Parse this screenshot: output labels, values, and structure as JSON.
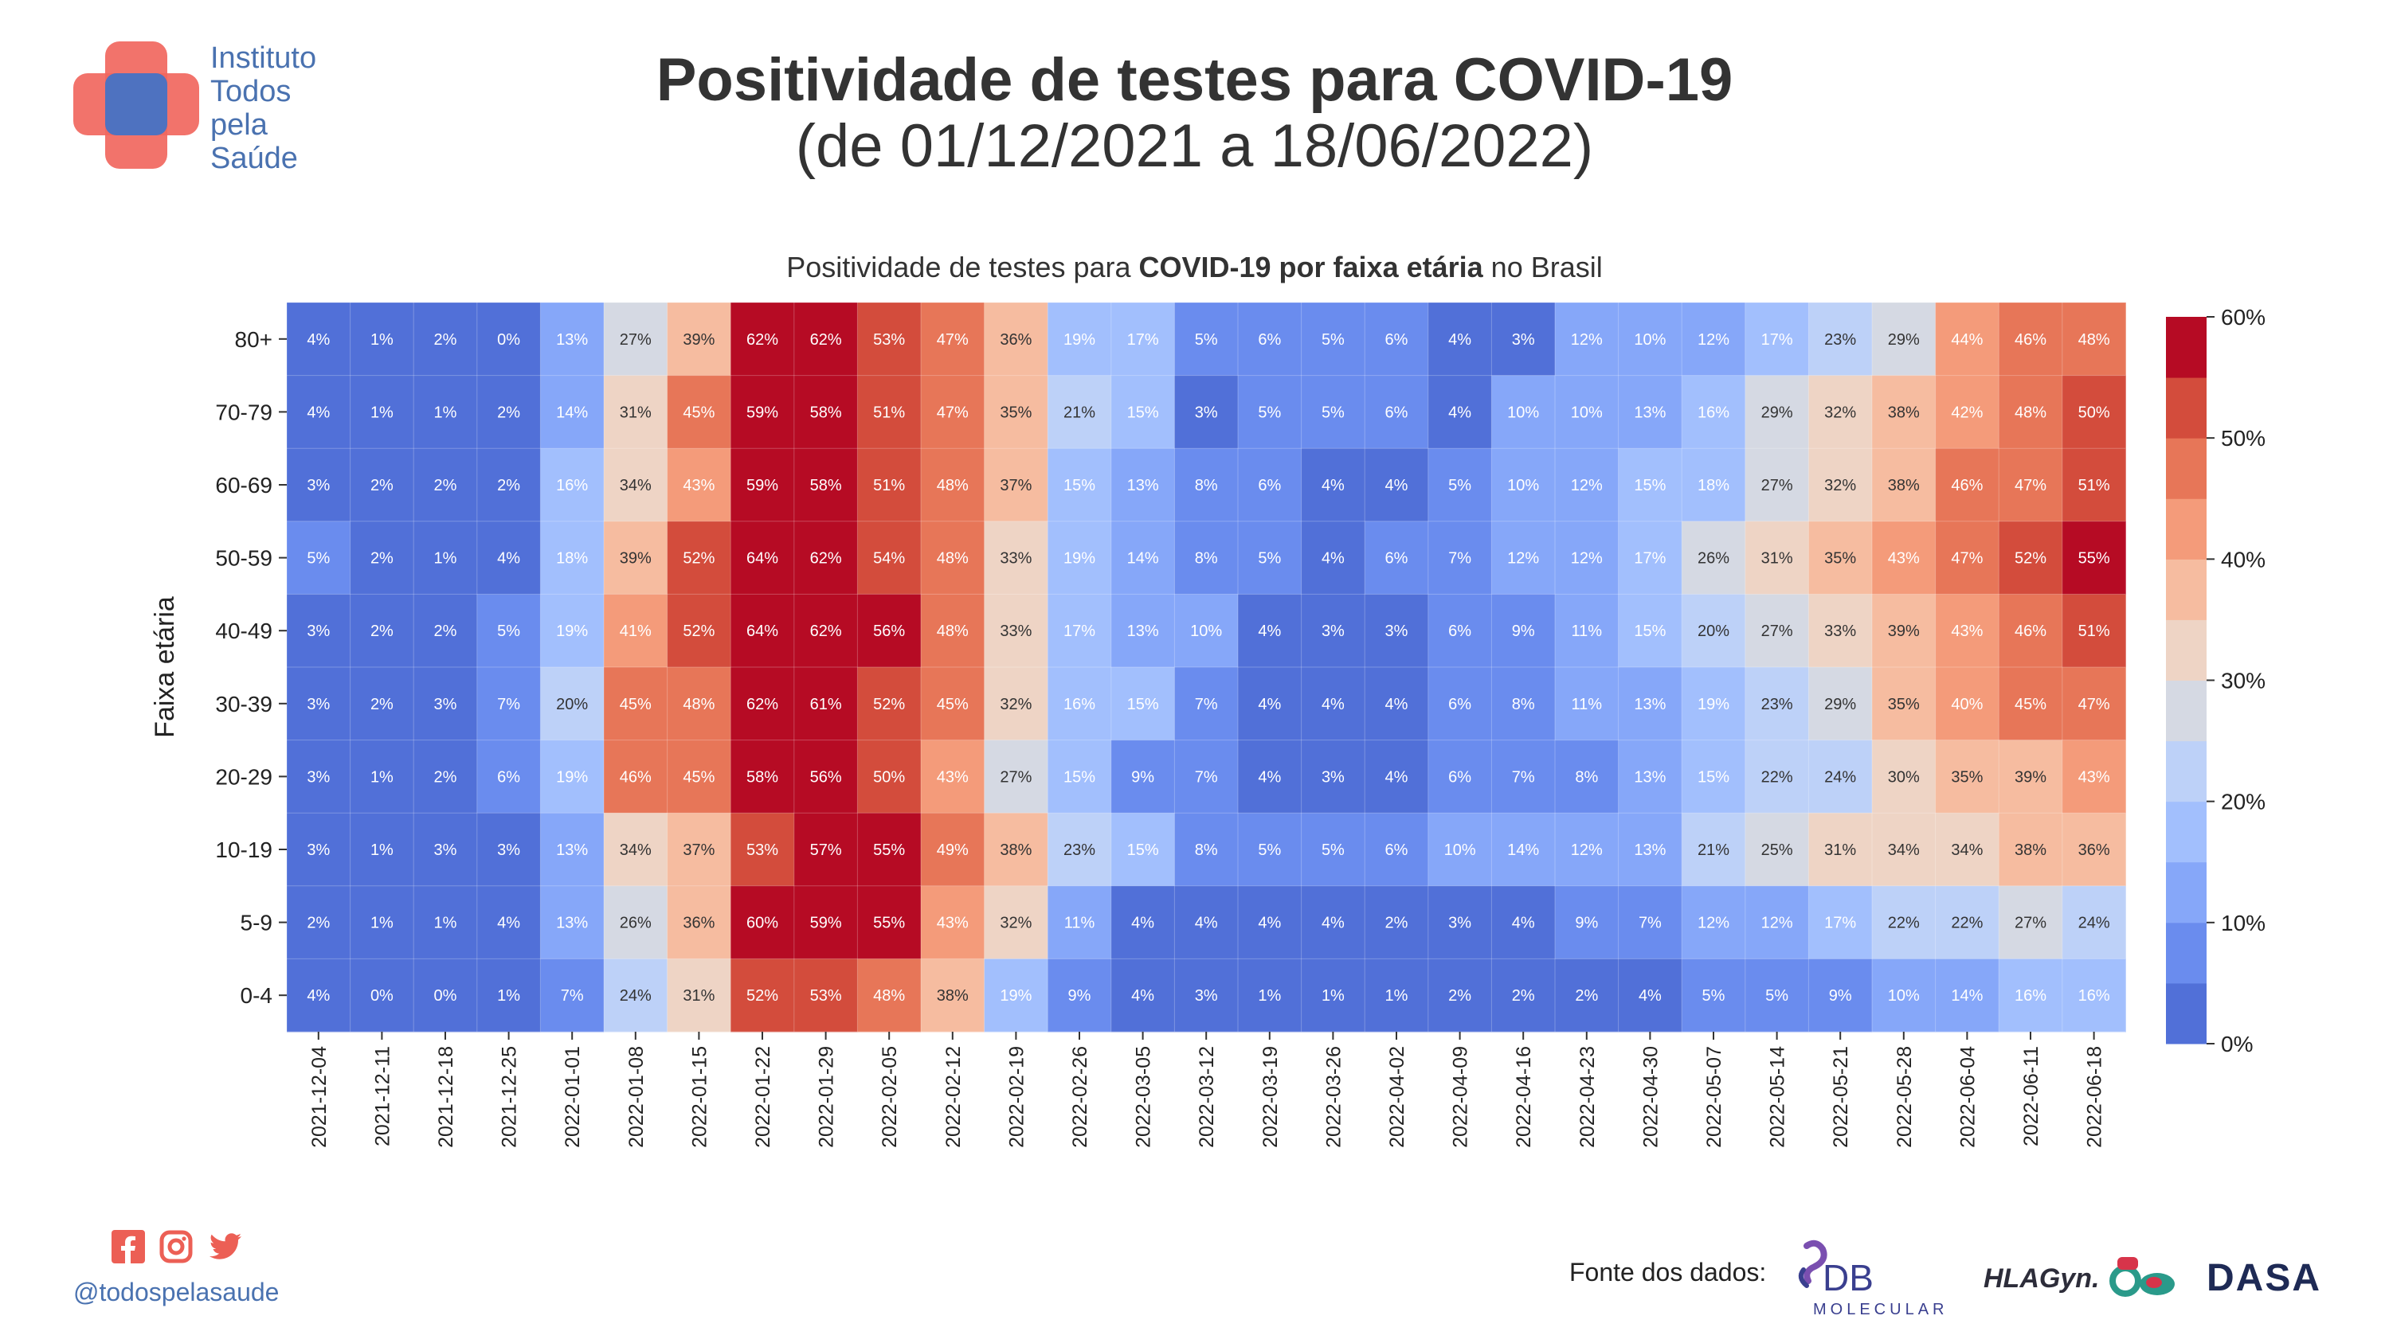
{
  "header": {
    "logo_lines": [
      "Instituto",
      "Todos",
      "pela",
      "Saúde"
    ],
    "title": "Positividade de testes para COVID-19",
    "subtitle": "(de 01/12/2021 a 18/06/2022)"
  },
  "chart_title": {
    "part1": "Positividade de testes para ",
    "bold": "COVID-19 por faixa etária",
    "part2": " no Brasil"
  },
  "footer": {
    "handle": "@todospelasaude",
    "source_label": "Fonte dos dados:",
    "partners": [
      "DB",
      "MOLECULAR",
      "HLAGyn.",
      "DASA"
    ]
  },
  "colors": {
    "scale": [
      "#5170d8",
      "#6a8cee",
      "#86a7f9",
      "#a2bffd",
      "#bdd1f8",
      "#d5d9e3",
      "#eed4c5",
      "#f6bca0",
      "#f49b7a",
      "#e77658",
      "#d34c3c",
      "#b60b24"
    ],
    "brand_blue": "#4a72b0",
    "brand_red": "#f1675e"
  },
  "chart_data": {
    "type": "heatmap",
    "ylabel": "Faixa etária",
    "xlabel": "",
    "x": [
      "2021-12-04",
      "2021-12-11",
      "2021-12-18",
      "2021-12-25",
      "2022-01-01",
      "2022-01-08",
      "2022-01-15",
      "2022-01-22",
      "2022-01-29",
      "2022-02-05",
      "2022-02-12",
      "2022-02-19",
      "2022-02-26",
      "2022-03-05",
      "2022-03-12",
      "2022-03-19",
      "2022-03-26",
      "2022-04-02",
      "2022-04-09",
      "2022-04-16",
      "2022-04-23",
      "2022-04-30",
      "2022-05-07",
      "2022-05-14",
      "2022-05-21",
      "2022-05-28",
      "2022-06-04",
      "2022-06-11",
      "2022-06-18"
    ],
    "y": [
      "80+",
      "70-79",
      "60-69",
      "50-59",
      "40-49",
      "30-39",
      "20-29",
      "10-19",
      "5-9",
      "0-4"
    ],
    "values": [
      [
        4,
        1,
        2,
        0,
        13,
        27,
        39,
        62,
        62,
        53,
        47,
        36,
        19,
        17,
        5,
        6,
        5,
        6,
        4,
        3,
        12,
        10,
        12,
        17,
        23,
        29,
        44,
        46,
        48
      ],
      [
        4,
        1,
        1,
        2,
        14,
        31,
        45,
        59,
        58,
        51,
        47,
        35,
        21,
        15,
        3,
        5,
        5,
        6,
        4,
        10,
        10,
        13,
        16,
        29,
        32,
        38,
        42,
        48,
        50
      ],
      [
        3,
        2,
        2,
        2,
        16,
        34,
        43,
        59,
        58,
        51,
        48,
        37,
        15,
        13,
        8,
        6,
        4,
        4,
        5,
        10,
        12,
        15,
        18,
        27,
        32,
        38,
        46,
        47,
        51
      ],
      [
        5,
        2,
        1,
        4,
        18,
        39,
        52,
        64,
        62,
        54,
        48,
        33,
        19,
        14,
        8,
        5,
        4,
        6,
        7,
        12,
        12,
        17,
        26,
        31,
        35,
        43,
        47,
        52,
        55
      ],
      [
        3,
        2,
        2,
        5,
        19,
        41,
        52,
        64,
        62,
        56,
        48,
        33,
        17,
        13,
        10,
        4,
        3,
        3,
        6,
        9,
        11,
        15,
        20,
        27,
        33,
        39,
        43,
        46,
        51
      ],
      [
        3,
        2,
        3,
        7,
        20,
        45,
        48,
        62,
        61,
        52,
        45,
        32,
        16,
        15,
        7,
        4,
        4,
        4,
        6,
        8,
        11,
        13,
        19,
        23,
        29,
        35,
        40,
        45,
        47
      ],
      [
        3,
        1,
        2,
        6,
        19,
        46,
        45,
        58,
        56,
        50,
        43,
        27,
        15,
        9,
        7,
        4,
        3,
        4,
        6,
        7,
        8,
        13,
        15,
        22,
        24,
        30,
        35,
        39,
        43
      ],
      [
        3,
        1,
        3,
        3,
        13,
        34,
        37,
        53,
        57,
        55,
        49,
        38,
        23,
        15,
        8,
        5,
        5,
        6,
        10,
        14,
        12,
        13,
        21,
        25,
        31,
        34,
        34,
        38,
        36
      ],
      [
        2,
        1,
        1,
        4,
        13,
        26,
        36,
        60,
        59,
        55,
        43,
        32,
        11,
        4,
        4,
        4,
        4,
        2,
        3,
        4,
        9,
        7,
        12,
        12,
        17,
        22,
        22,
        27,
        24
      ],
      [
        4,
        0,
        0,
        1,
        7,
        24,
        31,
        52,
        53,
        48,
        38,
        19,
        9,
        4,
        3,
        1,
        1,
        1,
        2,
        2,
        2,
        4,
        5,
        5,
        9,
        10,
        14,
        16,
        16
      ]
    ],
    "value_suffix": "%",
    "colorbar": {
      "min": 0,
      "max": 60,
      "ticks": [
        "0%",
        "10%",
        "20%",
        "30%",
        "40%",
        "50%",
        "60%"
      ]
    }
  }
}
